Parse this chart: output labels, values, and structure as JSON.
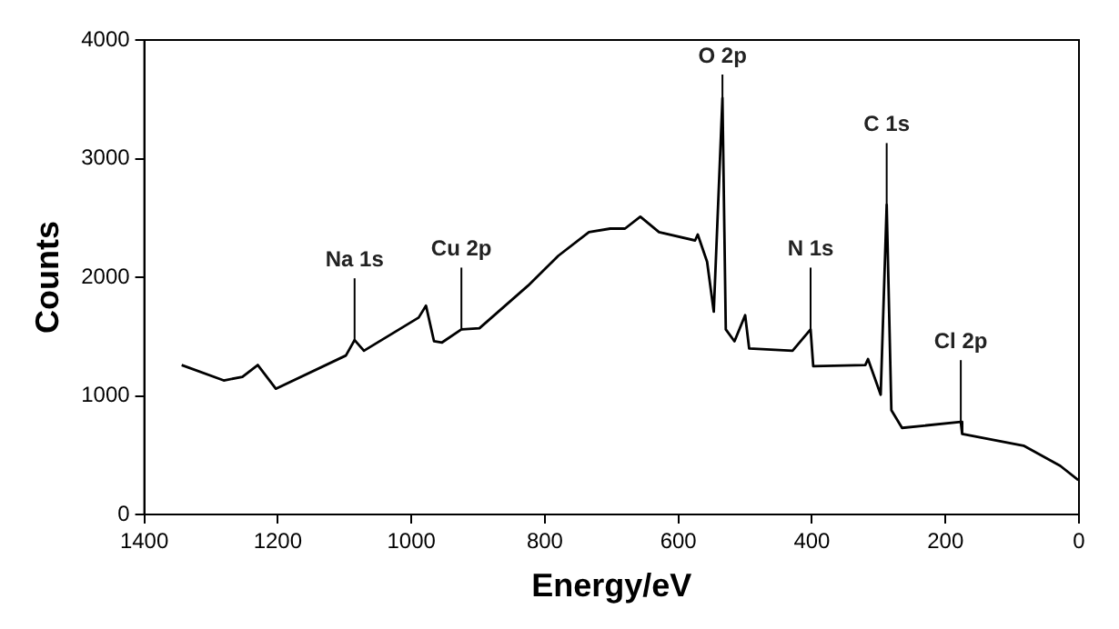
{
  "chart_data": {
    "type": "line",
    "xlabel": "Energy/eV",
    "ylabel": "Counts",
    "x": [
      1344,
      1281,
      1253,
      1230,
      1203,
      1098,
      1085,
      1071,
      989,
      978,
      966,
      954,
      925,
      898,
      825,
      780,
      734,
      702,
      680,
      657,
      629,
      575,
      571,
      557,
      547,
      534,
      529,
      516,
      500,
      494,
      429,
      402,
      398,
      320,
      316,
      297,
      288,
      281,
      265,
      177,
      175,
      83,
      28,
      1
    ],
    "series": [
      {
        "color": "#000000",
        "values": [
          1260,
          1130,
          1160,
          1260,
          1060,
          1340,
          1470,
          1380,
          1660,
          1760,
          1460,
          1450,
          1560,
          1570,
          1930,
          2180,
          2380,
          2410,
          2410,
          2510,
          2380,
          2310,
          2360,
          2130,
          1710,
          3510,
          1560,
          1460,
          1680,
          1400,
          1380,
          1560,
          1250,
          1260,
          1310,
          1010,
          2610,
          880,
          730,
          780,
          680,
          580,
          410,
          290
        ]
      }
    ],
    "xlim": [
      1400,
      0
    ],
    "xticks": [
      1400,
      1200,
      1000,
      800,
      600,
      400,
      200,
      0
    ],
    "ylim": [
      0,
      4000
    ],
    "yticks": [
      0,
      1000,
      2000,
      3000,
      4000
    ],
    "grid": false,
    "legend": false,
    "marker": "none",
    "line_style": "solid",
    "annotations": [
      {
        "text": "Na 1s",
        "x": 1085,
        "y": 1470
      },
      {
        "text": "Cu 2p",
        "x": 925,
        "y": 1560
      },
      {
        "text": "O 2p",
        "x": 534,
        "y": 3510
      },
      {
        "text": "N 1s",
        "x": 402,
        "y": 1560
      },
      {
        "text": "C 1s",
        "x": 288,
        "y": 2610
      },
      {
        "text": "Cl 2p",
        "x": 177,
        "y": 780
      }
    ]
  }
}
